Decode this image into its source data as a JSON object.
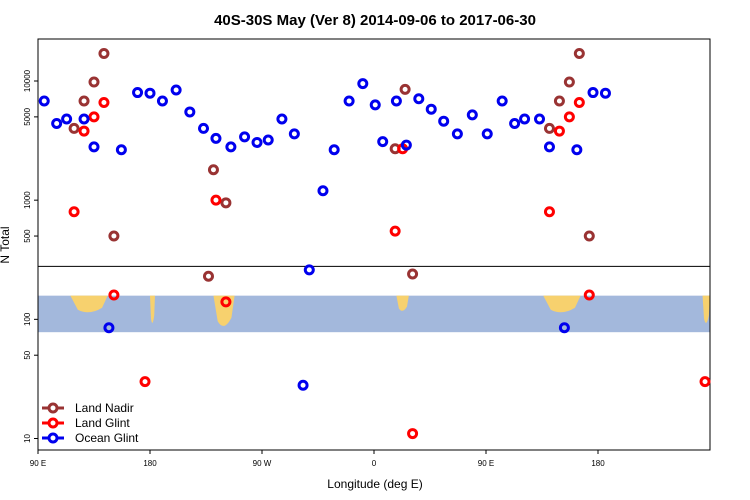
{
  "chart_data": {
    "type": "scatter",
    "title": "40S-30S May (Ver 8)   2014-09-06 to 2017-06-30",
    "xlabel": "Longitude (deg E)",
    "ylabel": "N Total",
    "y_scale": "log",
    "x_range_deg": [
      -90,
      180
    ],
    "x_ticks": [
      {
        "value": -90,
        "label": "90 E"
      },
      {
        "value": -45,
        "label": "180"
      },
      {
        "value": 0,
        "label": "90 W"
      },
      {
        "value": 45,
        "label": "0"
      },
      {
        "value": 90,
        "label": "90 E"
      },
      {
        "value": 135,
        "label": "180"
      }
    ],
    "y_ticks": [
      10,
      50,
      100,
      500,
      1000,
      5000,
      10000
    ],
    "legend_position": "bottom-left",
    "series": [
      {
        "name": "Land Nadir",
        "color": "#993333",
        "points": [
          {
            "x": -75.5,
            "y": 4000
          },
          {
            "x": -71.5,
            "y": 6800
          },
          {
            "x": -67.5,
            "y": 9800
          },
          {
            "x": -63.5,
            "y": 17000
          },
          {
            "x": -59.5,
            "y": 500
          },
          {
            "x": -21.5,
            "y": 230
          },
          {
            "x": -19.5,
            "y": 1800
          },
          {
            "x": -14.5,
            "y": 950
          },
          {
            "x": 53.5,
            "y": 2700
          },
          {
            "x": 57.5,
            "y": 8500
          },
          {
            "x": 60.5,
            "y": 240
          },
          {
            "x": 115.5,
            "y": 4000
          },
          {
            "x": 119.5,
            "y": 6800
          },
          {
            "x": 123.5,
            "y": 9800
          },
          {
            "x": 127.5,
            "y": 17000
          },
          {
            "x": 131.5,
            "y": 500
          }
        ]
      },
      {
        "name": "Land Glint",
        "color": "#ff0000",
        "points": [
          {
            "x": -75.5,
            "y": 800
          },
          {
            "x": -71.5,
            "y": 3800
          },
          {
            "x": -67.5,
            "y": 5000
          },
          {
            "x": -63.5,
            "y": 6600
          },
          {
            "x": -59.5,
            "y": 160
          },
          {
            "x": -47,
            "y": 30
          },
          {
            "x": -18.5,
            "y": 1000
          },
          {
            "x": -14.5,
            "y": 140
          },
          {
            "x": 53.5,
            "y": 550
          },
          {
            "x": 56.5,
            "y": 2700
          },
          {
            "x": 60.5,
            "y": 11
          },
          {
            "x": 115.5,
            "y": 800
          },
          {
            "x": 119.5,
            "y": 3800
          },
          {
            "x": 123.5,
            "y": 5000
          },
          {
            "x": 127.5,
            "y": 6600
          },
          {
            "x": 131.5,
            "y": 160
          },
          {
            "x": 178,
            "y": 30
          }
        ]
      },
      {
        "name": "Ocean Glint",
        "color": "#0000ee",
        "points": [
          {
            "x": -87.5,
            "y": 6800
          },
          {
            "x": -82.5,
            "y": 4400
          },
          {
            "x": -78.5,
            "y": 4800
          },
          {
            "x": -71.5,
            "y": 4800
          },
          {
            "x": -67.5,
            "y": 2800
          },
          {
            "x": -61.5,
            "y": 85
          },
          {
            "x": -56.5,
            "y": 2650
          },
          {
            "x": -50,
            "y": 8000
          },
          {
            "x": -45,
            "y": 7900
          },
          {
            "x": -40,
            "y": 6800
          },
          {
            "x": -34.5,
            "y": 8400
          },
          {
            "x": -29,
            "y": 5500
          },
          {
            "x": -23.5,
            "y": 4000
          },
          {
            "x": -18.5,
            "y": 3300
          },
          {
            "x": -12.5,
            "y": 2800
          },
          {
            "x": -7,
            "y": 3400
          },
          {
            "x": -2,
            "y": 3050
          },
          {
            "x": 2.5,
            "y": 3200
          },
          {
            "x": 8,
            "y": 4800
          },
          {
            "x": 13,
            "y": 3600
          },
          {
            "x": 16.5,
            "y": 28
          },
          {
            "x": 19,
            "y": 260
          },
          {
            "x": 24.5,
            "y": 1200
          },
          {
            "x": 29,
            "y": 2650
          },
          {
            "x": 35,
            "y": 6800
          },
          {
            "x": 40.5,
            "y": 9500
          },
          {
            "x": 45.5,
            "y": 6300
          },
          {
            "x": 48.5,
            "y": 3100
          },
          {
            "x": 54,
            "y": 6800
          },
          {
            "x": 58,
            "y": 2900
          },
          {
            "x": 63,
            "y": 7100
          },
          {
            "x": 68,
            "y": 5800
          },
          {
            "x": 73,
            "y": 4600
          },
          {
            "x": 78.5,
            "y": 3600
          },
          {
            "x": 84.5,
            "y": 5200
          },
          {
            "x": 90.5,
            "y": 3600
          },
          {
            "x": 96.5,
            "y": 6800
          },
          {
            "x": 101.5,
            "y": 4400
          },
          {
            "x": 105.5,
            "y": 4800
          },
          {
            "x": 111.5,
            "y": 4800
          },
          {
            "x": 115.5,
            "y": 2800
          },
          {
            "x": 121.5,
            "y": 85
          },
          {
            "x": 126.5,
            "y": 2650
          },
          {
            "x": 133,
            "y": 8000
          },
          {
            "x": 138,
            "y": 7900
          }
        ]
      }
    ]
  },
  "map_colors": {
    "ocean": "#a3b8dc",
    "land": "#f7d16e"
  }
}
